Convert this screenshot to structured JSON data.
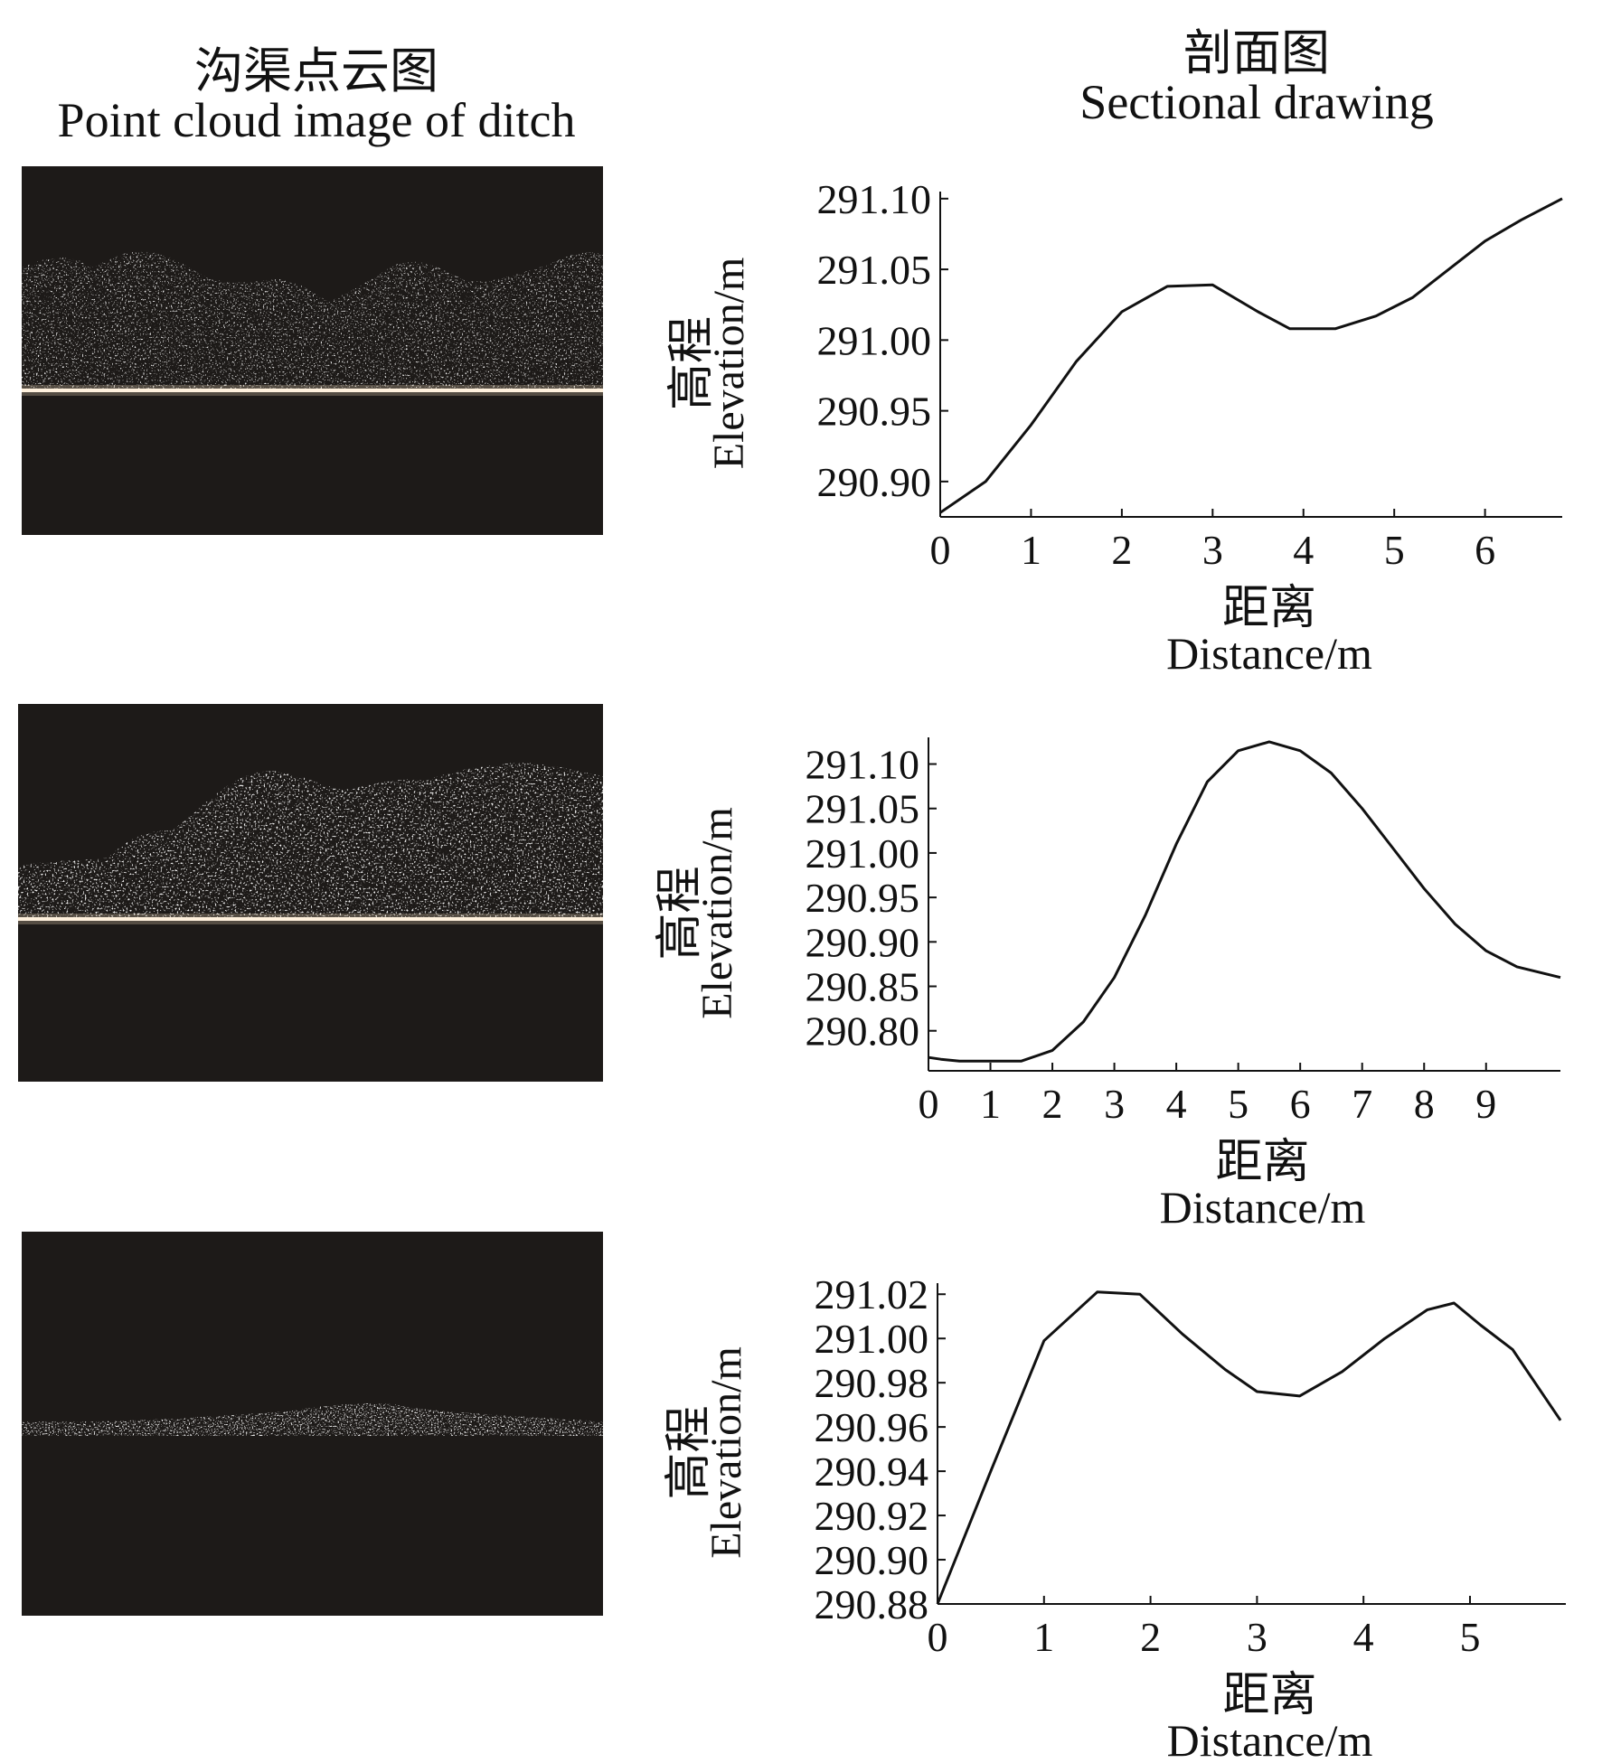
{
  "headings": {
    "left": {
      "zh": "沟渠点云图",
      "en": "Point cloud image of ditch"
    },
    "right": {
      "zh": "剖面图",
      "en": "Sectional drawing"
    }
  },
  "chart_data": [
    {
      "type": "line",
      "title": "",
      "ylabel_zh": "高程",
      "ylabel_en": "Elevation/m",
      "xlabel_zh": "距离",
      "xlabel_en": "Distance/m",
      "xlim": [
        0,
        6.85
      ],
      "ylim": [
        290.875,
        291.105
      ],
      "xticks": [
        0,
        1,
        2,
        3,
        4,
        5,
        6
      ],
      "yticks": [
        {
          "value": 290.9,
          "label": "290.90"
        },
        {
          "value": 290.95,
          "label": "290.95"
        },
        {
          "value": 291.0,
          "label": "291.00"
        },
        {
          "value": 291.05,
          "label": "291.05"
        },
        {
          "value": 291.1,
          "label": "291.10"
        }
      ],
      "series": [
        {
          "x": [
            0,
            0.5,
            1.0,
            1.5,
            2.0,
            2.5,
            3.0,
            3.5,
            3.85,
            4.35,
            4.8,
            5.2,
            5.6,
            6.0,
            6.4,
            6.85
          ],
          "y": [
            290.878,
            290.9,
            290.94,
            290.985,
            291.02,
            291.038,
            291.039,
            291.02,
            291.008,
            291.008,
            291.017,
            291.03,
            291.05,
            291.07,
            291.085,
            291.1
          ]
        }
      ]
    },
    {
      "type": "line",
      "title": "",
      "ylabel_zh": "高程",
      "ylabel_en": "Elevation/m",
      "xlabel_zh": "距离",
      "xlabel_en": "Distance/m",
      "xlim": [
        0,
        10.2
      ],
      "ylim": [
        290.755,
        291.13
      ],
      "xticks": [
        0,
        1,
        2,
        3,
        4,
        5,
        6,
        7,
        8,
        9
      ],
      "yticks": [
        {
          "value": 290.8,
          "label": "290.80"
        },
        {
          "value": 290.85,
          "label": "290.85"
        },
        {
          "value": 290.9,
          "label": "290.90"
        },
        {
          "value": 290.95,
          "label": "290.95"
        },
        {
          "value": 291.0,
          "label": "291.00"
        },
        {
          "value": 291.05,
          "label": "291.05"
        },
        {
          "value": 291.1,
          "label": "291.10"
        }
      ],
      "series": [
        {
          "x": [
            0,
            0.2,
            0.5,
            1.0,
            1.5,
            2.0,
            2.5,
            3.0,
            3.5,
            4.0,
            4.5,
            5.0,
            5.5,
            6.0,
            6.5,
            7.0,
            7.5,
            8.0,
            8.5,
            9.0,
            9.5,
            10.2
          ],
          "y": [
            290.77,
            290.768,
            290.766,
            290.766,
            290.766,
            290.778,
            290.81,
            290.86,
            290.93,
            291.01,
            291.08,
            291.115,
            291.125,
            291.115,
            291.09,
            291.05,
            291.005,
            290.96,
            290.92,
            290.89,
            290.872,
            290.86
          ]
        }
      ]
    },
    {
      "type": "line",
      "title": "",
      "ylabel_zh": "高程",
      "ylabel_en": "Elevation/m",
      "xlabel_zh": "距离",
      "xlabel_en": "Distance/m",
      "xlim": [
        0,
        5.9
      ],
      "ylim": [
        290.88,
        291.025
      ],
      "xticks": [
        0,
        1,
        2,
        3,
        4,
        5
      ],
      "yticks": [
        {
          "value": 290.88,
          "label": "290.88"
        },
        {
          "value": 290.9,
          "label": "290.90"
        },
        {
          "value": 290.92,
          "label": "290.92"
        },
        {
          "value": 290.94,
          "label": "290.94"
        },
        {
          "value": 290.96,
          "label": "290.96"
        },
        {
          "value": 290.98,
          "label": "290.98"
        },
        {
          "value": 291.0,
          "label": "291.00"
        },
        {
          "value": 291.02,
          "label": "291.02"
        }
      ],
      "series": [
        {
          "x": [
            0,
            0.5,
            1.0,
            1.5,
            1.9,
            2.3,
            2.7,
            3.0,
            3.4,
            3.8,
            4.2,
            4.6,
            4.85,
            5.1,
            5.4,
            5.85
          ],
          "y": [
            290.88,
            290.94,
            290.999,
            291.021,
            291.02,
            291.002,
            290.986,
            290.976,
            290.974,
            290.985,
            291.0,
            291.013,
            291.016,
            291.006,
            290.995,
            290.963
          ]
        }
      ]
    }
  ]
}
